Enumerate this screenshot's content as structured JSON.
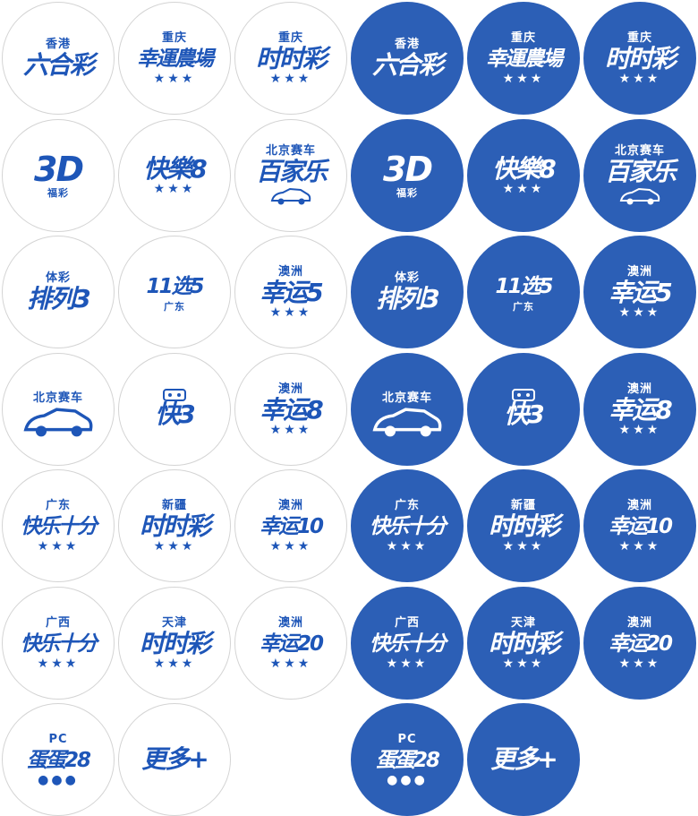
{
  "colors": {
    "primary": "#2c5fb6",
    "light_text": "#1e56b8",
    "light_bg": "#ffffff",
    "border": "#d4d4d4"
  },
  "rows": [
    [
      {
        "top": "香港",
        "main": "六合彩",
        "bottom": ""
      },
      {
        "top": "重庆",
        "main": "幸運農場",
        "bottom": "★★★"
      },
      {
        "top": "重庆",
        "main": "时时彩",
        "bottom": "★★★"
      }
    ],
    [
      {
        "top": "",
        "main": "3D",
        "bottom": "福彩"
      },
      {
        "top": "",
        "main": "快樂8",
        "bottom": "★★★"
      },
      {
        "top": "北京赛车",
        "main": "百家乐",
        "bottom": "",
        "icon": "race-car-icon"
      }
    ],
    [
      {
        "top": "体彩",
        "main": "排列3",
        "bottom": ""
      },
      {
        "top": "",
        "main": "11选5",
        "bottom": "广东"
      },
      {
        "top": "澳洲",
        "main": "幸运5",
        "bottom": "★★★"
      }
    ],
    [
      {
        "top": "北京赛车",
        "main": "",
        "bottom": "",
        "icon": "race-car-icon"
      },
      {
        "top": "",
        "main": "快3",
        "bottom": "",
        "icon": "dice-icon"
      },
      {
        "top": "澳洲",
        "main": "幸运8",
        "bottom": "★★★"
      }
    ],
    [
      {
        "top": "广东",
        "main": "快乐十分",
        "bottom": "★★★"
      },
      {
        "top": "新疆",
        "main": "时时彩",
        "bottom": "★★★"
      },
      {
        "top": "澳洲",
        "main": "幸运10",
        "bottom": "★★★"
      }
    ],
    [
      {
        "top": "广西",
        "main": "快乐十分",
        "bottom": "★★★"
      },
      {
        "top": "天津",
        "main": "时时彩",
        "bottom": "★★★"
      },
      {
        "top": "澳洲",
        "main": "幸运20",
        "bottom": "★★★"
      }
    ],
    [
      {
        "top": "PC",
        "main": "蛋蛋28",
        "bottom": "●●●"
      },
      {
        "top": "",
        "main": "更多+",
        "bottom": ""
      }
    ]
  ]
}
